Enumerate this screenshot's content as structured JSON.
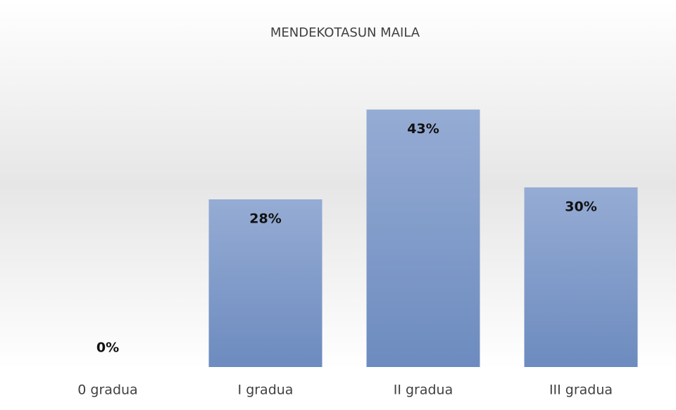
{
  "chart_data": {
    "type": "bar",
    "title": "MENDEKOTASUN MAILA",
    "categories": [
      "0 gradua",
      "I gradua",
      "II gradua",
      "III gradua"
    ],
    "values": [
      0,
      28,
      43,
      30
    ],
    "value_labels": [
      "0%",
      "28%",
      "43%",
      "30%"
    ],
    "color": "#7f9ac9"
  }
}
